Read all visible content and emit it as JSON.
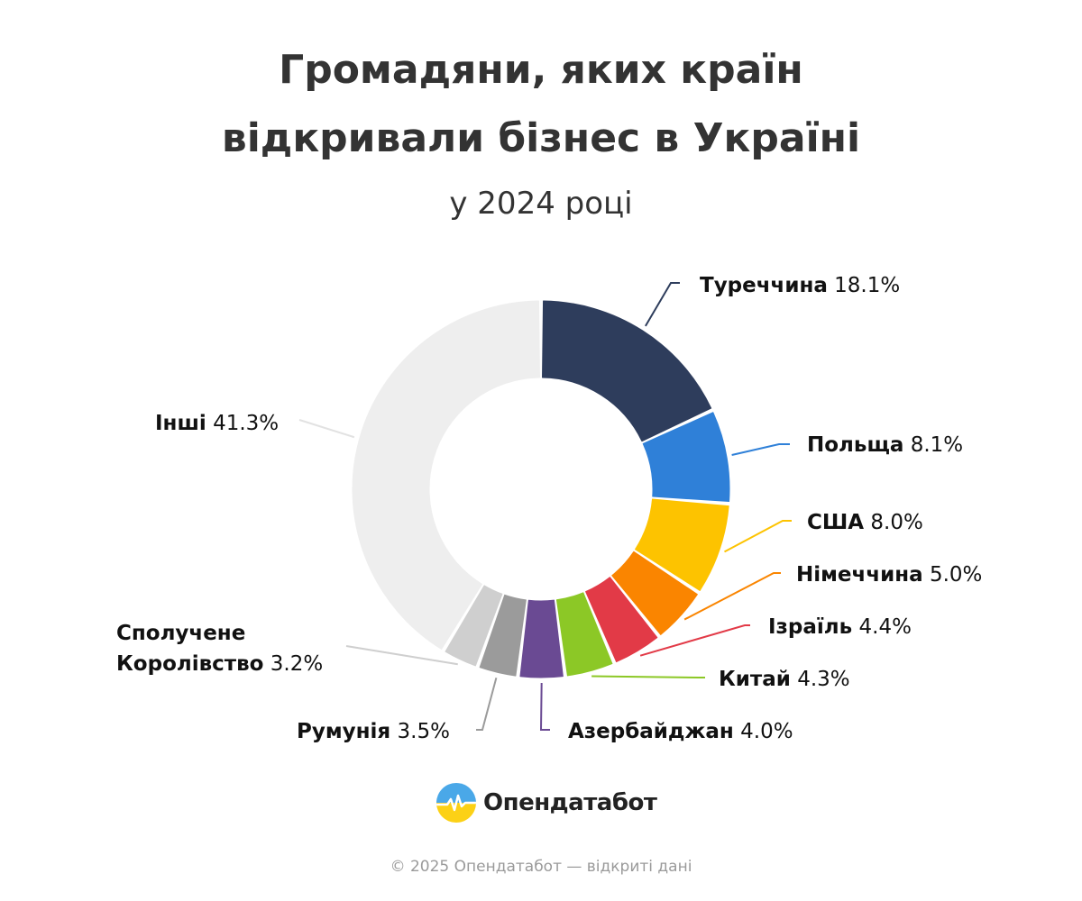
{
  "header": {
    "title_line1": "Громадяни, яких країн",
    "title_line2": "відкривали бізнес в Україні",
    "subtitle": "у 2024 році"
  },
  "chart_data": {
    "type": "pie",
    "variant": "donut",
    "title": "Громадяни, яких країн відкривали бізнес в Україні",
    "subtitle": "у 2024 році",
    "unit": "%",
    "slices": [
      {
        "label": "Туреччина",
        "value": 18.1,
        "display": "18.1%",
        "color": "#2e3d5c"
      },
      {
        "label": "Польща",
        "value": 8.1,
        "display": "8.1%",
        "color": "#2f80d8"
      },
      {
        "label": "США",
        "value": 8.0,
        "display": "8.0%",
        "color": "#fdc300"
      },
      {
        "label": "Німеччина",
        "value": 5.0,
        "display": "5.0%",
        "color": "#fa8500"
      },
      {
        "label": "Ізраїль",
        "value": 4.4,
        "display": "4.4%",
        "color": "#e23a47"
      },
      {
        "label": "Китай",
        "value": 4.3,
        "display": "4.3%",
        "color": "#8cc826"
      },
      {
        "label": "Азербайджан",
        "value": 4.0,
        "display": "4.0%",
        "color": "#6a4a93"
      },
      {
        "label": "Румунія",
        "value": 3.5,
        "display": "3.5%",
        "color": "#9b9b9b"
      },
      {
        "label": "Сполучене Королівство",
        "value": 3.2,
        "display": "3.2%",
        "color": "#cfcfcf"
      },
      {
        "label": "Інші",
        "value": 41.3,
        "display": "41.3%",
        "color": "#eeeeee"
      }
    ]
  },
  "brand": {
    "name": "Опендатабот",
    "logo_icon": "opendatabot-logo-icon"
  },
  "footer": {
    "text": "© 2025 Опендатабот — відкриті дані"
  }
}
